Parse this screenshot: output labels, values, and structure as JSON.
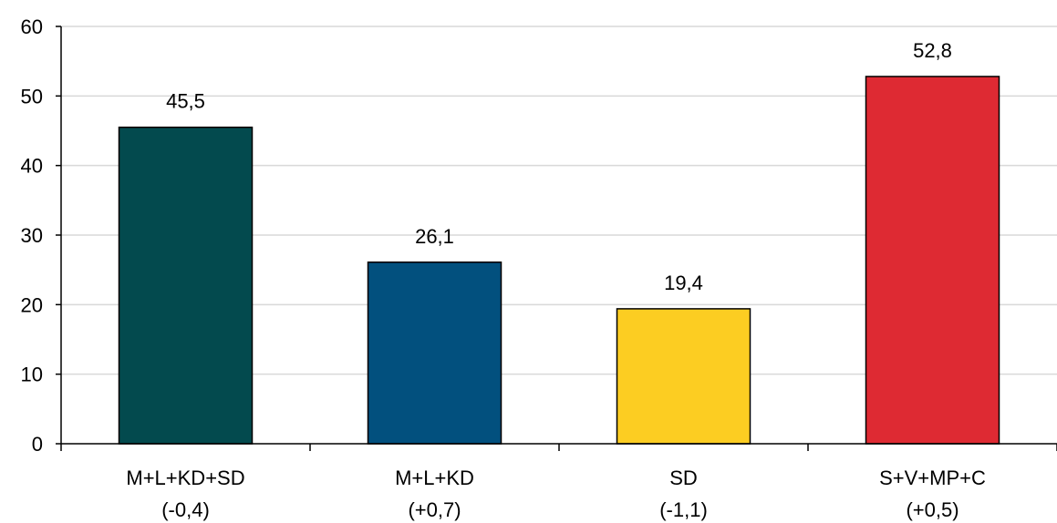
{
  "chart_data": {
    "type": "bar",
    "categories": [
      [
        "M+L+KD+SD",
        "(-0,4)"
      ],
      [
        "M+L+KD",
        "(+0,7)"
      ],
      [
        "SD",
        "(-1,1)"
      ],
      [
        "S+V+MP+C",
        "(+0,5)"
      ]
    ],
    "values": [
      45.5,
      26.1,
      19.4,
      52.8
    ],
    "data_labels": [
      "45,5",
      "26,1",
      "19,4",
      "52,8"
    ],
    "colors": [
      "#034A4E",
      "#02507E",
      "#FCCD22",
      "#DE2A33"
    ],
    "ylim": [
      0,
      60
    ],
    "yticks": [
      0,
      10,
      20,
      30,
      40,
      50,
      60
    ],
    "ytick_labels": [
      "0",
      "10",
      "20",
      "30",
      "40",
      "50",
      "60"
    ],
    "grid": true,
    "title": "",
    "xlabel": "",
    "ylabel": ""
  }
}
